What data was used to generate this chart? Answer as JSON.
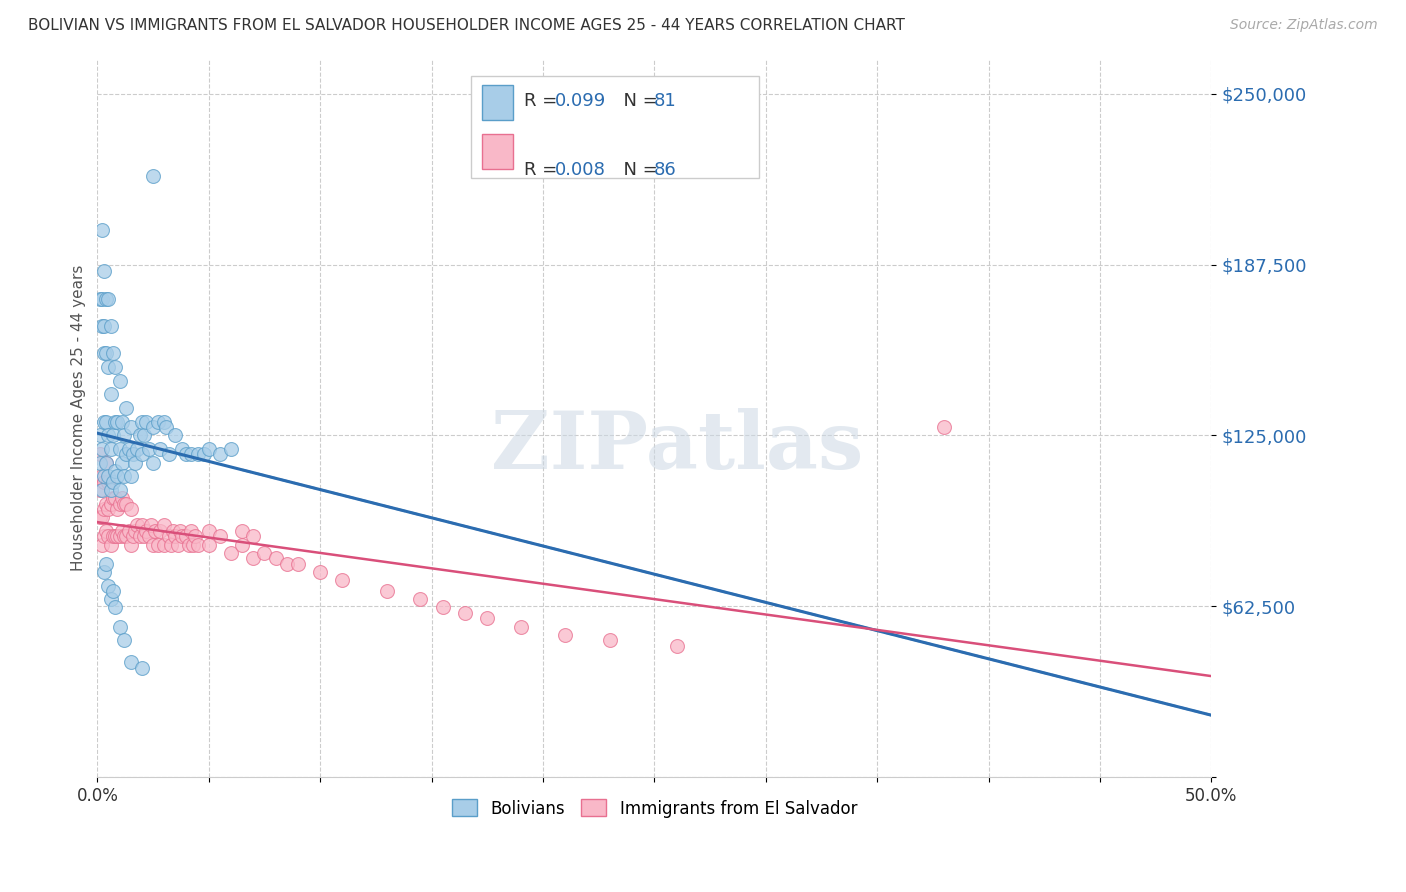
{
  "title": "BOLIVIAN VS IMMIGRANTS FROM EL SALVADOR HOUSEHOLDER INCOME AGES 25 - 44 YEARS CORRELATION CHART",
  "source": "Source: ZipAtlas.com",
  "ylabel": "Householder Income Ages 25 - 44 years",
  "xlim": [
    0.0,
    0.5
  ],
  "ylim": [
    0,
    262500
  ],
  "yticks": [
    0,
    62500,
    125000,
    187500,
    250000
  ],
  "ytick_labels": [
    "",
    "$62,500",
    "$125,000",
    "$187,500",
    "$250,000"
  ],
  "xticks": [
    0.0,
    0.1,
    0.2,
    0.3,
    0.4,
    0.5
  ],
  "xtick_labels": [
    "0.0%",
    "",
    "",
    "",
    "",
    "50.0%"
  ],
  "color_blue": "#a8cde8",
  "color_pink": "#f9b8c8",
  "color_blue_edge": "#5a9ec9",
  "color_pink_edge": "#e87090",
  "color_blue_line": "#2b6cb0",
  "color_pink_line": "#d94f7a",
  "color_blue_text": "#2b6cb0",
  "watermark": "ZIPatlas",
  "bolivians_x": [
    0.001,
    0.001,
    0.001,
    0.002,
    0.002,
    0.002,
    0.002,
    0.002,
    0.003,
    0.003,
    0.003,
    0.003,
    0.003,
    0.004,
    0.004,
    0.004,
    0.004,
    0.005,
    0.005,
    0.005,
    0.005,
    0.006,
    0.006,
    0.006,
    0.006,
    0.007,
    0.007,
    0.007,
    0.008,
    0.008,
    0.008,
    0.009,
    0.009,
    0.01,
    0.01,
    0.01,
    0.011,
    0.011,
    0.012,
    0.012,
    0.013,
    0.013,
    0.014,
    0.015,
    0.015,
    0.016,
    0.017,
    0.018,
    0.019,
    0.02,
    0.02,
    0.021,
    0.022,
    0.023,
    0.025,
    0.025,
    0.027,
    0.028,
    0.03,
    0.031,
    0.032,
    0.035,
    0.038,
    0.04,
    0.042,
    0.045,
    0.048,
    0.05,
    0.055,
    0.06,
    0.003,
    0.004,
    0.005,
    0.006,
    0.007,
    0.008,
    0.01,
    0.012,
    0.015,
    0.02,
    0.025
  ],
  "bolivians_y": [
    115000,
    125000,
    175000,
    105000,
    120000,
    165000,
    175000,
    200000,
    110000,
    130000,
    155000,
    165000,
    185000,
    115000,
    130000,
    155000,
    175000,
    110000,
    125000,
    150000,
    175000,
    105000,
    120000,
    140000,
    165000,
    108000,
    125000,
    155000,
    112000,
    130000,
    150000,
    110000,
    130000,
    105000,
    120000,
    145000,
    115000,
    130000,
    110000,
    125000,
    118000,
    135000,
    120000,
    110000,
    128000,
    118000,
    115000,
    120000,
    125000,
    118000,
    130000,
    125000,
    130000,
    120000,
    115000,
    128000,
    130000,
    120000,
    130000,
    128000,
    118000,
    125000,
    120000,
    118000,
    118000,
    118000,
    118000,
    120000,
    118000,
    120000,
    75000,
    78000,
    70000,
    65000,
    68000,
    62000,
    55000,
    50000,
    42000,
    40000,
    220000
  ],
  "salvador_x": [
    0.001,
    0.001,
    0.001,
    0.002,
    0.002,
    0.002,
    0.003,
    0.003,
    0.003,
    0.004,
    0.004,
    0.004,
    0.005,
    0.005,
    0.005,
    0.006,
    0.006,
    0.007,
    0.007,
    0.008,
    0.008,
    0.009,
    0.009,
    0.01,
    0.01,
    0.011,
    0.011,
    0.012,
    0.012,
    0.013,
    0.013,
    0.014,
    0.015,
    0.015,
    0.016,
    0.017,
    0.018,
    0.019,
    0.02,
    0.021,
    0.022,
    0.023,
    0.024,
    0.025,
    0.026,
    0.027,
    0.028,
    0.03,
    0.03,
    0.032,
    0.033,
    0.034,
    0.035,
    0.036,
    0.037,
    0.038,
    0.04,
    0.041,
    0.042,
    0.043,
    0.044,
    0.045,
    0.05,
    0.05,
    0.055,
    0.06,
    0.065,
    0.065,
    0.07,
    0.07,
    0.075,
    0.08,
    0.085,
    0.09,
    0.1,
    0.11,
    0.13,
    0.145,
    0.155,
    0.165,
    0.175,
    0.19,
    0.21,
    0.23,
    0.26,
    0.38
  ],
  "salvador_y": [
    95000,
    105000,
    118000,
    85000,
    95000,
    110000,
    88000,
    98000,
    108000,
    90000,
    100000,
    115000,
    88000,
    98000,
    108000,
    85000,
    100000,
    88000,
    102000,
    88000,
    102000,
    88000,
    98000,
    88000,
    100000,
    90000,
    102000,
    88000,
    100000,
    88000,
    100000,
    90000,
    85000,
    98000,
    88000,
    90000,
    92000,
    88000,
    92000,
    88000,
    90000,
    88000,
    92000,
    85000,
    90000,
    85000,
    90000,
    85000,
    92000,
    88000,
    85000,
    90000,
    88000,
    85000,
    90000,
    88000,
    88000,
    85000,
    90000,
    85000,
    88000,
    85000,
    85000,
    90000,
    88000,
    82000,
    85000,
    90000,
    80000,
    88000,
    82000,
    80000,
    78000,
    78000,
    75000,
    72000,
    68000,
    65000,
    62000,
    60000,
    58000,
    55000,
    52000,
    50000,
    48000,
    128000
  ]
}
